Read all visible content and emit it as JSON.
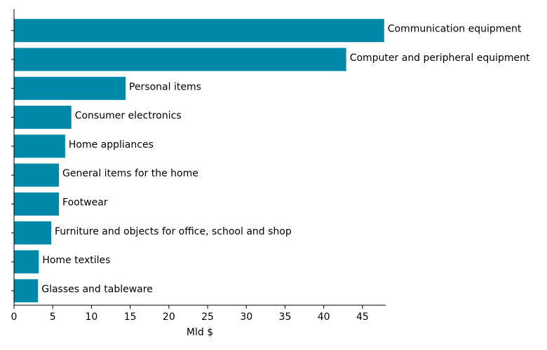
{
  "chart_data": {
    "type": "bar",
    "orientation": "horizontal",
    "categories": [
      "Communication equipment",
      "Computer and peripheral equipment",
      "Personal items",
      "Consumer electronics",
      "Home appliances",
      "General items for the home",
      "Footwear",
      "Furniture and objects for office, school and shop",
      "Home textiles",
      "Glasses and tableware"
    ],
    "values": [
      47.8,
      42.9,
      14.4,
      7.4,
      6.6,
      5.8,
      5.8,
      4.8,
      3.2,
      3.1
    ],
    "xlabel": "Mld $",
    "xlim": [
      0,
      48
    ],
    "xticks": [
      0,
      5,
      10,
      15,
      20,
      25,
      30,
      35,
      40,
      45
    ],
    "grid": false,
    "colors": {
      "bar": "#0088a8",
      "axis": "#000000"
    }
  }
}
